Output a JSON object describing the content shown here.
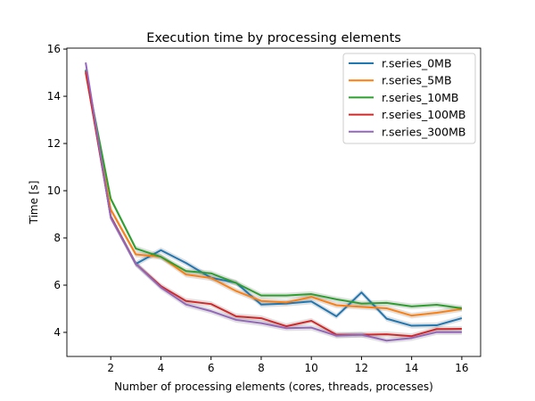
{
  "chart_data": {
    "type": "line",
    "title": "Execution time by processing elements",
    "xlabel": "Number of processing elements (cores, threads, processes)",
    "ylabel": "Time [s]",
    "xlim": [
      0.25,
      16.75
    ],
    "ylim": [
      2.98,
      16.04
    ],
    "xticks": [
      2,
      4,
      6,
      8,
      10,
      12,
      14,
      16
    ],
    "yticks": [
      4,
      6,
      8,
      10,
      12,
      14,
      16
    ],
    "grid": false,
    "legend_position": "top-right",
    "confidence_band": true,
    "x": [
      1,
      2,
      3,
      4,
      5,
      6,
      7,
      8,
      9,
      10,
      11,
      12,
      13,
      14,
      15,
      16
    ],
    "series": [
      {
        "name": "r.series_0MB",
        "color": "#1f77b4",
        "values": [
          15.12,
          8.9,
          6.9,
          7.48,
          6.94,
          6.31,
          6.1,
          5.18,
          5.22,
          5.31,
          4.68,
          5.69,
          4.58,
          4.28,
          4.3,
          4.6
        ]
      },
      {
        "name": "r.series_5MB",
        "color": "#ff7f0e",
        "values": [
          14.99,
          9.2,
          7.3,
          7.2,
          6.45,
          6.3,
          5.75,
          5.33,
          5.27,
          5.5,
          5.15,
          5.08,
          5.02,
          4.71,
          4.83,
          4.99
        ]
      },
      {
        "name": "r.series_10MB",
        "color": "#2ca02c",
        "values": [
          15.1,
          9.66,
          7.55,
          7.2,
          6.6,
          6.5,
          6.09,
          5.56,
          5.56,
          5.62,
          5.4,
          5.22,
          5.25,
          5.1,
          5.17,
          5.02
        ]
      },
      {
        "name": "r.series_100MB",
        "color": "#d62728",
        "values": [
          15.05,
          8.9,
          6.9,
          5.96,
          5.33,
          5.2,
          4.68,
          4.6,
          4.26,
          4.49,
          3.9,
          3.9,
          3.92,
          3.84,
          4.14,
          4.15
        ]
      },
      {
        "name": "r.series_300MB",
        "color": "#9467bd",
        "values": [
          15.43,
          8.85,
          6.9,
          5.9,
          5.18,
          4.9,
          4.53,
          4.39,
          4.18,
          4.2,
          3.86,
          3.9,
          3.65,
          3.76,
          4.01,
          4.01
        ]
      }
    ]
  }
}
